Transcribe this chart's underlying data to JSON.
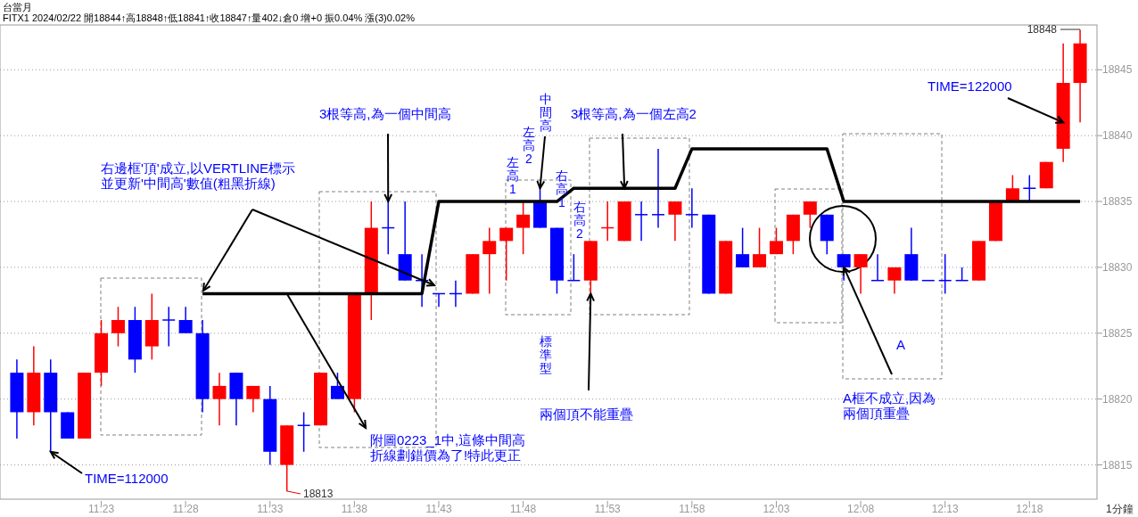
{
  "chart_data": {
    "type": "candlestick",
    "title": "台當月",
    "subtitle": "FITX1 2024/02/22 開18844↑高18848↑低18841↑收18847↑量402↓倉0 增+0 振0.04% 漲(3)0.02%",
    "x": [
      "2024-02-22T11:18",
      "2024-02-22T11:19",
      "2024-02-22T11:20",
      "2024-02-22T11:21",
      "2024-02-22T11:22",
      "2024-02-22T11:23",
      "2024-02-22T11:24",
      "2024-02-22T11:25",
      "2024-02-22T11:26",
      "2024-02-22T11:27",
      "2024-02-22T11:28",
      "2024-02-22T11:29",
      "2024-02-22T11:30",
      "2024-02-22T11:31",
      "2024-02-22T11:32",
      "2024-02-22T11:33",
      "2024-02-22T11:34",
      "2024-02-22T11:35",
      "2024-02-22T11:36",
      "2024-02-22T11:37",
      "2024-02-22T11:38",
      "2024-02-22T11:39",
      "2024-02-22T11:40",
      "2024-02-22T11:41",
      "2024-02-22T11:42",
      "2024-02-22T11:43",
      "2024-02-22T11:44",
      "2024-02-22T11:45",
      "2024-02-22T11:46",
      "2024-02-22T11:47",
      "2024-02-22T11:48",
      "2024-02-22T11:49",
      "2024-02-22T11:50",
      "2024-02-22T11:51",
      "2024-02-22T11:52",
      "2024-02-22T11:53",
      "2024-02-22T11:54",
      "2024-02-22T11:55",
      "2024-02-22T11:56",
      "2024-02-22T11:57",
      "2024-02-22T11:58",
      "2024-02-22T11:59",
      "2024-02-22T12:00",
      "2024-02-22T12:01",
      "2024-02-22T12:02",
      "2024-02-22T12:03",
      "2024-02-22T12:04",
      "2024-02-22T12:05",
      "2024-02-22T12:06",
      "2024-02-22T12:07",
      "2024-02-22T12:08",
      "2024-02-22T12:09",
      "2024-02-22T12:10",
      "2024-02-22T12:11",
      "2024-02-22T12:12",
      "2024-02-22T12:13",
      "2024-02-22T12:14",
      "2024-02-22T12:15",
      "2024-02-22T12:16",
      "2024-02-22T12:17",
      "2024-02-22T12:18",
      "2024-02-22T12:19",
      "2024-02-22T12:20",
      "2024-02-22T12:21"
    ],
    "ohlc": [
      [
        18822,
        18823,
        18817,
        18819
      ],
      [
        18819,
        18824,
        18818,
        18822
      ],
      [
        18822,
        18823,
        18816,
        18819
      ],
      [
        18819,
        18819,
        18817,
        18817
      ],
      [
        18817,
        18822,
        18817,
        18822
      ],
      [
        18822,
        18826,
        18821,
        18825
      ],
      [
        18825,
        18827,
        18824,
        18826
      ],
      [
        18826,
        18827,
        18822,
        18823
      ],
      [
        18824,
        18828,
        18823,
        18826
      ],
      [
        18826,
        18827,
        18824,
        18826
      ],
      [
        18826,
        18827,
        18825,
        18825
      ],
      [
        18825,
        18826,
        18819,
        18820
      ],
      [
        18820,
        18822,
        18818,
        18821
      ],
      [
        18822,
        18822,
        18818,
        18820
      ],
      [
        18820,
        18821,
        18819,
        18821
      ],
      [
        18820,
        18821,
        18815,
        18816
      ],
      [
        18815,
        18818,
        18813,
        18818
      ],
      [
        18818,
        18819,
        18816,
        18818
      ],
      [
        18818,
        18822,
        18818,
        18822
      ],
      [
        18821,
        18822,
        18820,
        18820
      ],
      [
        18820,
        18828,
        18819,
        18828
      ],
      [
        18828,
        18835,
        18826,
        18833
      ],
      [
        18833,
        18835,
        18831,
        18833
      ],
      [
        18831,
        18835,
        18829,
        18829
      ],
      [
        18829,
        18831,
        18827,
        18829
      ],
      [
        18828,
        18828,
        18827,
        18828
      ],
      [
        18828,
        18829,
        18827,
        18828
      ],
      [
        18828,
        18831,
        18828,
        18831
      ],
      [
        18831,
        18833,
        18828,
        18832
      ],
      [
        18832,
        18833,
        18829,
        18833
      ],
      [
        18833,
        18835,
        18831,
        18834
      ],
      [
        18835,
        18836,
        18833,
        18833
      ],
      [
        18833,
        18833,
        18828,
        18829
      ],
      [
        18829,
        18831,
        18829,
        18829
      ],
      [
        18829,
        18832,
        18828,
        18832
      ],
      [
        18833,
        18835,
        18832,
        18833
      ],
      [
        18832,
        18835,
        18832,
        18835
      ],
      [
        18834,
        18835,
        18832,
        18834
      ],
      [
        18834,
        18839,
        18833,
        18834
      ],
      [
        18834,
        18835,
        18832,
        18835
      ],
      [
        18834,
        18836,
        18833,
        18834
      ],
      [
        18834,
        18834,
        18828,
        18828
      ],
      [
        18828,
        18832,
        18828,
        18832
      ],
      [
        18831,
        18833,
        18830,
        18830
      ],
      [
        18830,
        18833,
        18830,
        18831
      ],
      [
        18831,
        18833,
        18831,
        18832
      ],
      [
        18832,
        18834,
        18831,
        18834
      ],
      [
        18834,
        18835,
        18833,
        18835
      ],
      [
        18834,
        18834,
        18831,
        18832
      ],
      [
        18831,
        18831,
        18829,
        18830
      ],
      [
        18830,
        18831,
        18828,
        18831
      ],
      [
        18829,
        18831,
        18829,
        18829
      ],
      [
        18829,
        18830,
        18828,
        18830
      ],
      [
        18831,
        18833,
        18829,
        18829
      ],
      [
        18829,
        18829,
        18829,
        18829
      ],
      [
        18829,
        18831,
        18828,
        18829
      ],
      [
        18829,
        18830,
        18829,
        18829
      ],
      [
        18829,
        18832,
        18829,
        18832
      ],
      [
        18832,
        18835,
        18832,
        18835
      ],
      [
        18835,
        18837,
        18835,
        18836
      ],
      [
        18836,
        18837,
        18835,
        18836
      ],
      [
        18836,
        18838,
        18836,
        18838
      ],
      [
        18839,
        18847,
        18838,
        18844
      ],
      [
        18844,
        18848,
        18841,
        18847
      ]
    ],
    "colors": [
      "#0000ff",
      "#ff0000",
      "#0000ff",
      "#0000ff",
      "#ff0000",
      "#ff0000",
      "#ff0000",
      "#0000ff",
      "#ff0000",
      "#0000ff",
      "#0000ff",
      "#0000ff",
      "#ff0000",
      "#0000ff",
      "#ff0000",
      "#0000ff",
      "#ff0000",
      "#0000ff",
      "#ff0000",
      "#0000ff",
      "#ff0000",
      "#ff0000",
      "#0000ff",
      "#0000ff",
      "#0000ff",
      "#0000ff",
      "#0000ff",
      "#ff0000",
      "#ff0000",
      "#ff0000",
      "#ff0000",
      "#0000ff",
      "#0000ff",
      "#0000ff",
      "#ff0000",
      "#ff0000",
      "#ff0000",
      "#0000ff",
      "#0000ff",
      "#ff0000",
      "#0000ff",
      "#0000ff",
      "#ff0000",
      "#0000ff",
      "#ff0000",
      "#ff0000",
      "#ff0000",
      "#ff0000",
      "#0000ff",
      "#0000ff",
      "#ff0000",
      "#0000ff",
      "#ff0000",
      "#0000ff",
      "#0000ff",
      "#0000ff",
      "#0000ff",
      "#ff0000",
      "#ff0000",
      "#ff0000",
      "#0000ff",
      "#ff0000",
      "#ff0000",
      "#ff0000"
    ],
    "series": [
      {
        "type": "line",
        "color": "#000000",
        "values": [
          null,
          null,
          null,
          null,
          null,
          null,
          null,
          null,
          null,
          null,
          null,
          18828,
          18828,
          18828,
          18828,
          18828,
          18828,
          18828,
          18828,
          18828,
          18828,
          18828,
          18828,
          18828,
          18828,
          18835,
          18835,
          18835,
          18835,
          18835,
          18835,
          18835,
          18835,
          18836,
          18836,
          18836,
          18836,
          18836,
          18836,
          18836,
          18839,
          18839,
          18839,
          18839,
          18839,
          18839,
          18839,
          18839,
          18839,
          18835,
          18835,
          18835,
          18835,
          18835,
          18835,
          18835,
          18835,
          18835,
          18835,
          18835,
          18835,
          18835,
          18835,
          18835
        ]
      }
    ],
    "xlim": [
      "2024-02-22T11:17",
      "2024-02-22T12:22"
    ],
    "xticks": [
      {
        "value": "2024-02-22T11:23",
        "label": "11:23"
      },
      {
        "value": "2024-02-22T11:28",
        "label": "11:28"
      },
      {
        "value": "2024-02-22T11:33",
        "label": "11:33"
      },
      {
        "value": "2024-02-22T11:38",
        "label": "11:38"
      },
      {
        "value": "2024-02-22T11:43",
        "label": "11:43"
      },
      {
        "value": "2024-02-22T11:48",
        "label": "11:48"
      },
      {
        "value": "2024-02-22T11:53",
        "label": "11:53"
      },
      {
        "value": "2024-02-22T11:58",
        "label": "11:58"
      },
      {
        "value": "2024-02-22T12:03",
        "label": "12:03"
      },
      {
        "value": "2024-02-22T12:08",
        "label": "12:08"
      },
      {
        "value": "2024-02-22T12:13",
        "label": "12:13"
      },
      {
        "value": "2024-02-22T12:18",
        "label": "12:18"
      }
    ],
    "ylim": [
      18812.4,
      18848.4
    ],
    "yticks": [
      18815,
      18820,
      18825,
      18830,
      18835,
      18840,
      18845
    ],
    "grid": "y",
    "annotations": [
      {
        "text": "TIME=112000",
        "x": "2024-02-22T11:20",
        "y": 18816
      },
      {
        "text": "TIME=122000",
        "x": "2024-02-22T12:20",
        "y": 18841
      },
      {
        "text": "3根等高,為一個中間高",
        "x": "2024-02-22T11:40",
        "y": 18835
      },
      {
        "text": "3根等高,為一個左高2",
        "x": "2024-02-22T11:54",
        "y": 18836
      },
      {
        "text": "中間高",
        "x": "2024-02-22T11:49",
        "y": 18836
      },
      "左高1",
      "左高2",
      "右高1",
      "右高2",
      "標準型",
      {
        "text": "兩個頂不能重疊",
        "x": "2024-02-22T11:52",
        "y": 18828
      },
      "右邊框'頂'成立,以VERTLINE標示並更新'中間高'數值(粗黑折線)",
      {
        "text": "附圖0223_1中,這條中間高折線劃錯價為了!特此更正",
        "x": "2024-02-22T11:34",
        "y": 18828
      },
      {
        "text": "A框不成立,因為兩個頂重疊",
        "x": "2024-02-22T12:07",
        "y": 18830
      },
      "A",
      {
        "text": "18848",
        "x": "2024-02-22T12:21",
        "y": 18848
      },
      {
        "text": "18813",
        "x": "2024-02-22T11:34",
        "y": 18813
      },
      "1分鐘"
    ]
  }
}
